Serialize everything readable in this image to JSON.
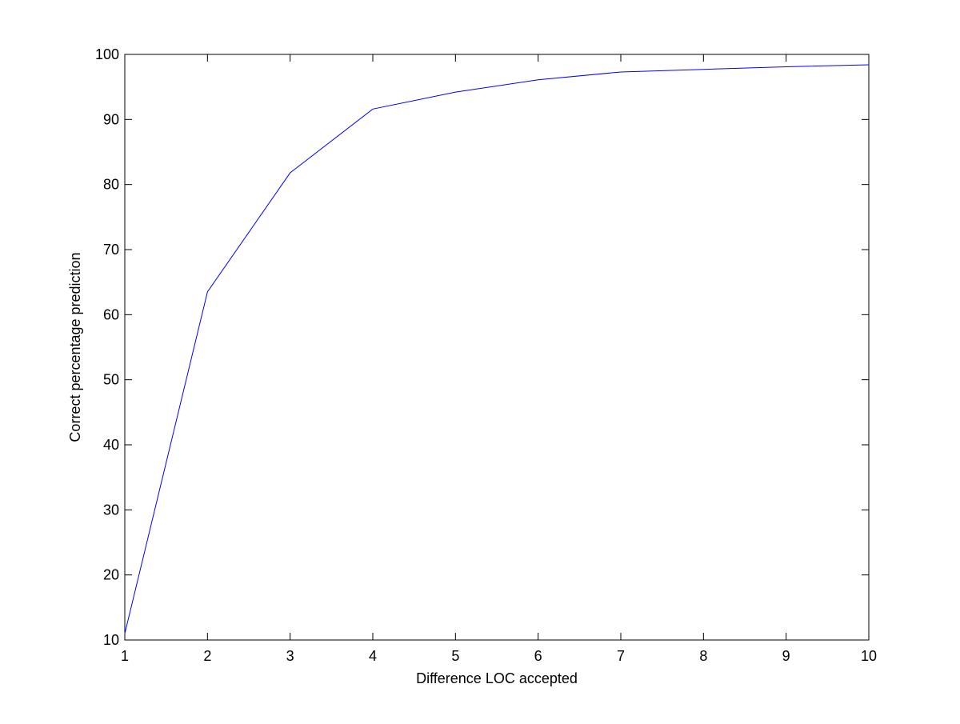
{
  "chart_data": {
    "type": "line",
    "title": "",
    "xlabel": "Difference LOC accepted",
    "ylabel": "Correct percentage prediction",
    "xlim": [
      1,
      10
    ],
    "ylim": [
      10,
      100
    ],
    "xticks": [
      1,
      2,
      3,
      4,
      5,
      6,
      7,
      8,
      9,
      10
    ],
    "yticks": [
      10,
      20,
      30,
      40,
      50,
      60,
      70,
      80,
      90,
      100
    ],
    "grid": false,
    "legend": "none",
    "series": [
      {
        "color": "#0000ff",
        "x": [
          1,
          2,
          3,
          4,
          5,
          6,
          7,
          8,
          9,
          10
        ],
        "y": [
          11.0,
          63.5,
          81.8,
          91.6,
          94.2,
          96.1,
          97.3,
          97.7,
          98.1,
          98.4
        ]
      }
    ]
  }
}
